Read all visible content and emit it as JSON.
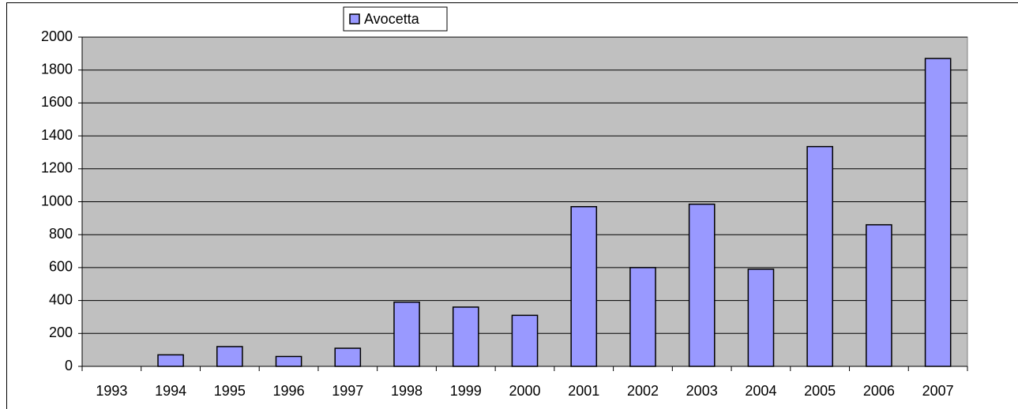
{
  "chart_data": {
    "type": "bar",
    "categories": [
      "1993",
      "1994",
      "1995",
      "1996",
      "1997",
      "1998",
      "1999",
      "2000",
      "2001",
      "2002",
      "2003",
      "2004",
      "2005",
      "2006",
      "2007"
    ],
    "series": [
      {
        "name": "Avocetta",
        "color": "#9999ff",
        "values": [
          0,
          70,
          120,
          60,
          110,
          390,
          360,
          310,
          970,
          600,
          985,
          590,
          1335,
          860,
          1870
        ]
      }
    ],
    "ylim": [
      0,
      2000
    ],
    "yticks": [
      0,
      200,
      400,
      600,
      800,
      1000,
      1200,
      1400,
      1600,
      1800,
      2000
    ],
    "grid": true,
    "legend": "top"
  }
}
